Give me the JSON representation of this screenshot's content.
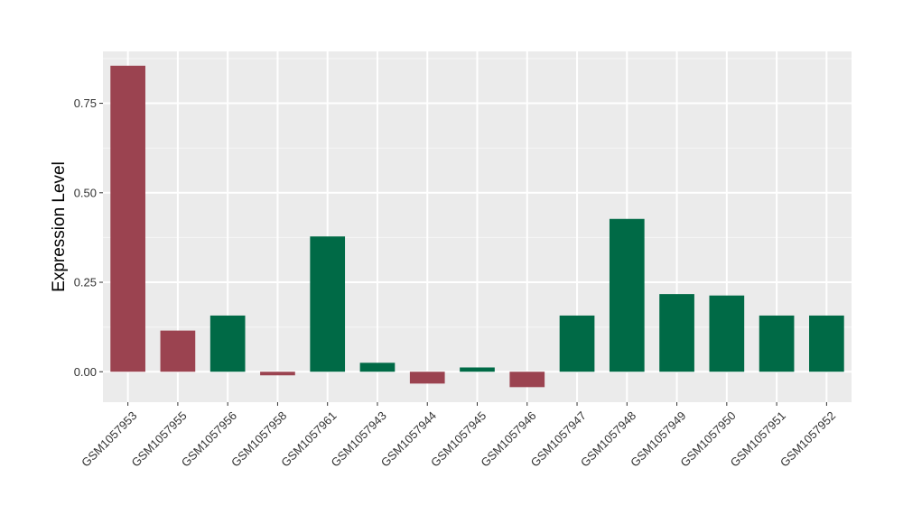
{
  "chart_data": {
    "type": "bar",
    "title": "",
    "xlabel": "",
    "ylabel": "Expression Level",
    "categories": [
      "GSM1057953",
      "GSM1057955",
      "GSM1057956",
      "GSM1057958",
      "GSM1057961",
      "GSM1057943",
      "GSM1057944",
      "GSM1057945",
      "GSM1057946",
      "GSM1057947",
      "GSM1057948",
      "GSM1057949",
      "GSM1057950",
      "GSM1057951",
      "GSM1057952"
    ],
    "values": [
      0.855,
      0.115,
      0.157,
      -0.01,
      0.378,
      0.025,
      -0.033,
      0.012,
      -0.043,
      0.157,
      0.427,
      0.217,
      0.213,
      0.157,
      0.157
    ],
    "bar_colors": [
      "#9B4350",
      "#9B4350",
      "#006A46",
      "#9B4350",
      "#006A46",
      "#006A46",
      "#9B4350",
      "#006A46",
      "#9B4350",
      "#006A46",
      "#006A46",
      "#006A46",
      "#006A46",
      "#006A46",
      "#006A46"
    ],
    "y_ticks": [
      0.0,
      0.25,
      0.5,
      0.75
    ],
    "y_tick_labels": [
      "0.00",
      "0.25",
      "0.50",
      "0.75"
    ],
    "ylim": [
      -0.085,
      0.895
    ],
    "grid": true,
    "legend": "none",
    "colors": {
      "panel_background": "#EBEBEB",
      "grid_major": "#FFFFFF",
      "grid_minor": "#F5F5F5"
    }
  }
}
